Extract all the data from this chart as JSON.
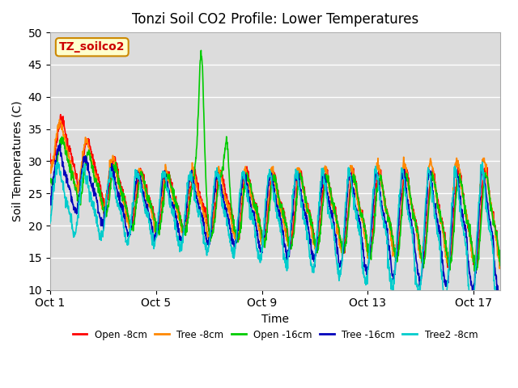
{
  "title": "Tonzi Soil CO2 Profile: Lower Temperatures",
  "xlabel": "Time",
  "ylabel": "Soil Temperatures (C)",
  "ylim": [
    10,
    50
  ],
  "yticks": [
    10,
    15,
    20,
    25,
    30,
    35,
    40,
    45,
    50
  ],
  "xtick_labels": [
    "Oct 1",
    "Oct 5",
    "Oct 9",
    "Oct 13",
    "Oct 17"
  ],
  "watermark": "TZ_soilco2",
  "bg_color": "#dcdcdc",
  "legend_entries": [
    "Open -8cm",
    "Tree -8cm",
    "Open -16cm",
    "Tree -16cm",
    "Tree2 -8cm"
  ],
  "legend_colors": [
    "#ff0000",
    "#ff8800",
    "#00cc00",
    "#0000bb",
    "#00cccc"
  ],
  "line_width": 1.2
}
